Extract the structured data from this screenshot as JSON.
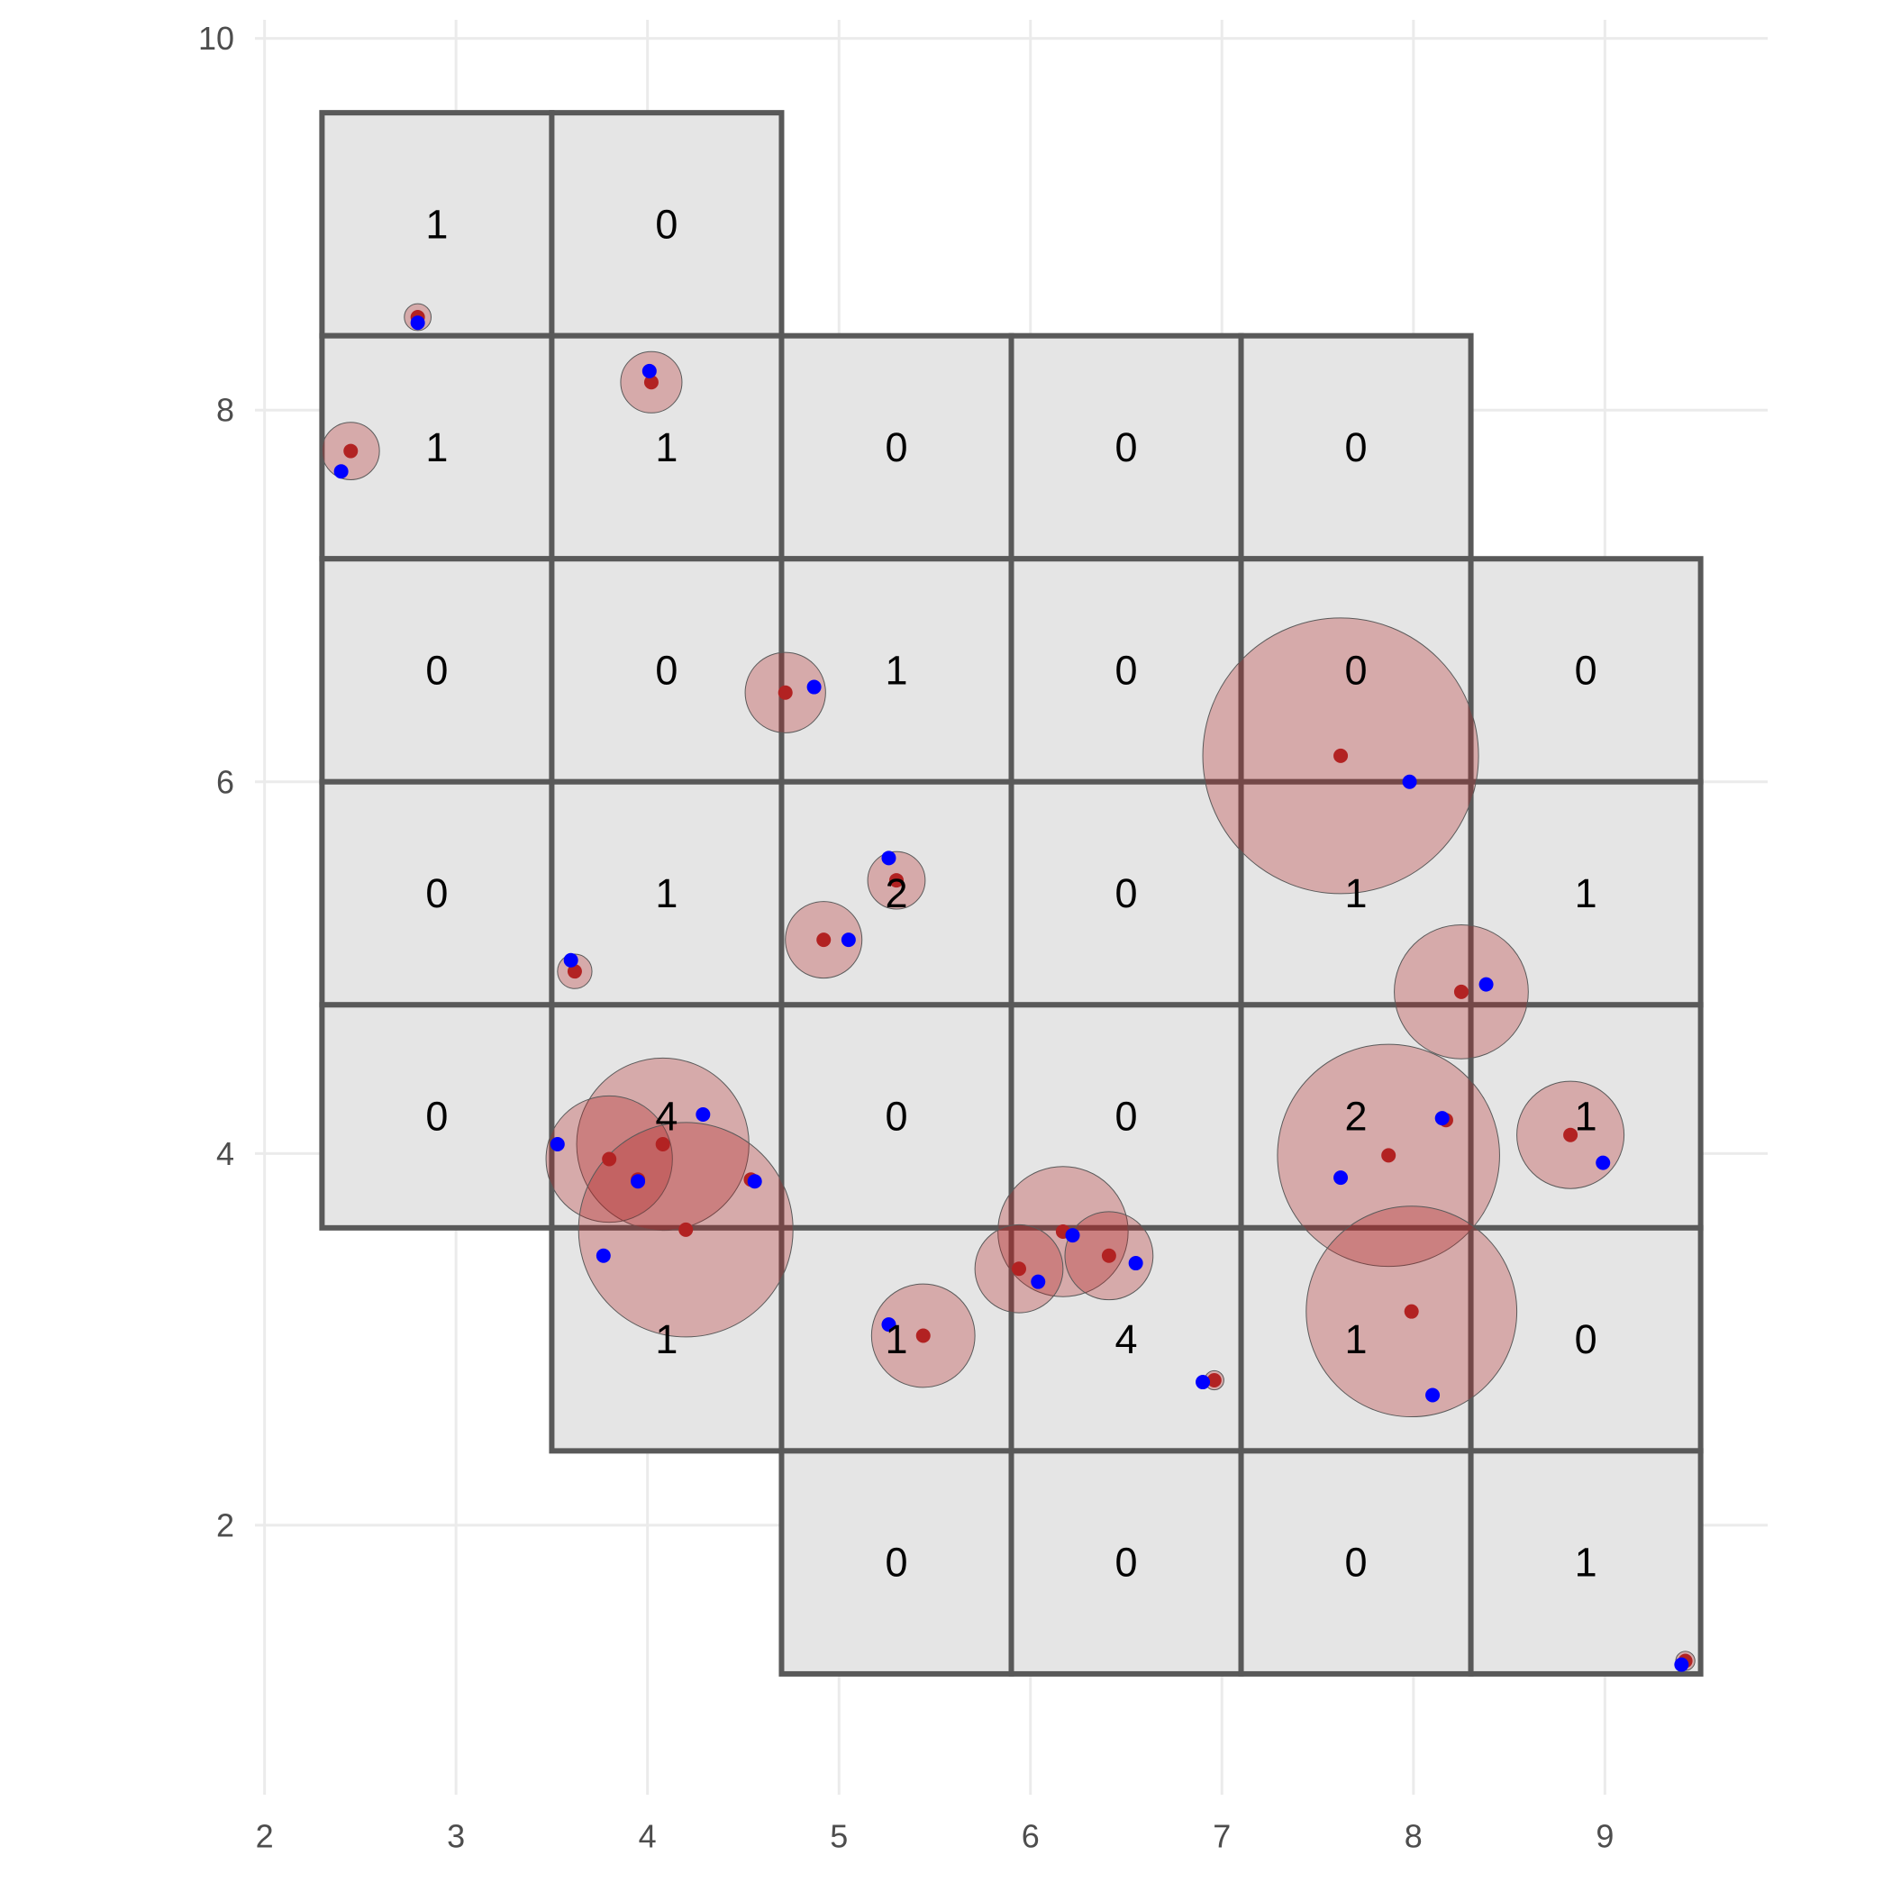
{
  "chart_data": {
    "type": "scatter",
    "title": "",
    "xlabel": "",
    "ylabel": "",
    "xlim": [
      1.95,
      9.85
    ],
    "ylim": [
      0.55,
      10.1
    ],
    "x_ticks": [
      2,
      3,
      4,
      5,
      6,
      7,
      8,
      9
    ],
    "y_ticks": [
      2,
      4,
      6,
      8,
      10
    ],
    "grid": true,
    "colors": {
      "cell_fill": "#e5e5e5",
      "cell_border": "#595959",
      "buffer_fill": "#b22222",
      "red_point": "#b22222",
      "blue_point": "#0000ff"
    },
    "cells": [
      {
        "x0": 2.3,
        "x1": 3.5,
        "y0": 8.4,
        "y1": 9.6,
        "count": "1"
      },
      {
        "x0": 3.5,
        "x1": 4.7,
        "y0": 8.4,
        "y1": 9.6,
        "count": "0"
      },
      {
        "x0": 2.3,
        "x1": 3.5,
        "y0": 7.2,
        "y1": 8.4,
        "count": "1"
      },
      {
        "x0": 3.5,
        "x1": 4.7,
        "y0": 7.2,
        "y1": 8.4,
        "count": "1"
      },
      {
        "x0": 4.7,
        "x1": 5.9,
        "y0": 7.2,
        "y1": 8.4,
        "count": "0"
      },
      {
        "x0": 5.9,
        "x1": 7.1,
        "y0": 7.2,
        "y1": 8.4,
        "count": "0"
      },
      {
        "x0": 7.1,
        "x1": 8.3,
        "y0": 7.2,
        "y1": 8.4,
        "count": "0"
      },
      {
        "x0": 2.3,
        "x1": 3.5,
        "y0": 6.0,
        "y1": 7.2,
        "count": "0"
      },
      {
        "x0": 3.5,
        "x1": 4.7,
        "y0": 6.0,
        "y1": 7.2,
        "count": "0"
      },
      {
        "x0": 4.7,
        "x1": 5.9,
        "y0": 6.0,
        "y1": 7.2,
        "count": "1"
      },
      {
        "x0": 5.9,
        "x1": 7.1,
        "y0": 6.0,
        "y1": 7.2,
        "count": "0"
      },
      {
        "x0": 7.1,
        "x1": 8.3,
        "y0": 6.0,
        "y1": 7.2,
        "count": "0"
      },
      {
        "x0": 8.3,
        "x1": 9.5,
        "y0": 6.0,
        "y1": 7.2,
        "count": "0"
      },
      {
        "x0": 2.3,
        "x1": 3.5,
        "y0": 4.8,
        "y1": 6.0,
        "count": "0"
      },
      {
        "x0": 3.5,
        "x1": 4.7,
        "y0": 4.8,
        "y1": 6.0,
        "count": "1"
      },
      {
        "x0": 4.7,
        "x1": 5.9,
        "y0": 4.8,
        "y1": 6.0,
        "count": "2"
      },
      {
        "x0": 5.9,
        "x1": 7.1,
        "y0": 4.8,
        "y1": 6.0,
        "count": "0"
      },
      {
        "x0": 7.1,
        "x1": 8.3,
        "y0": 4.8,
        "y1": 6.0,
        "count": "1"
      },
      {
        "x0": 8.3,
        "x1": 9.5,
        "y0": 4.8,
        "y1": 6.0,
        "count": "1"
      },
      {
        "x0": 2.3,
        "x1": 3.5,
        "y0": 3.6,
        "y1": 4.8,
        "count": "0"
      },
      {
        "x0": 3.5,
        "x1": 4.7,
        "y0": 3.6,
        "y1": 4.8,
        "count": "4"
      },
      {
        "x0": 4.7,
        "x1": 5.9,
        "y0": 3.6,
        "y1": 4.8,
        "count": "0"
      },
      {
        "x0": 5.9,
        "x1": 7.1,
        "y0": 3.6,
        "y1": 4.8,
        "count": "0"
      },
      {
        "x0": 7.1,
        "x1": 8.3,
        "y0": 3.6,
        "y1": 4.8,
        "count": "2"
      },
      {
        "x0": 8.3,
        "x1": 9.5,
        "y0": 3.6,
        "y1": 4.8,
        "count": "1"
      },
      {
        "x0": 3.5,
        "x1": 4.7,
        "y0": 2.4,
        "y1": 3.6,
        "count": "1"
      },
      {
        "x0": 4.7,
        "x1": 5.9,
        "y0": 2.4,
        "y1": 3.6,
        "count": "1"
      },
      {
        "x0": 5.9,
        "x1": 7.1,
        "y0": 2.4,
        "y1": 3.6,
        "count": "4"
      },
      {
        "x0": 7.1,
        "x1": 8.3,
        "y0": 2.4,
        "y1": 3.6,
        "count": "1"
      },
      {
        "x0": 8.3,
        "x1": 9.5,
        "y0": 2.4,
        "y1": 3.6,
        "count": "0"
      },
      {
        "x0": 4.7,
        "x1": 5.9,
        "y0": 1.2,
        "y1": 2.4,
        "count": "0"
      },
      {
        "x0": 5.9,
        "x1": 7.1,
        "y0": 1.2,
        "y1": 2.4,
        "count": "0"
      },
      {
        "x0": 7.1,
        "x1": 8.3,
        "y0": 1.2,
        "y1": 2.4,
        "count": "0"
      },
      {
        "x0": 8.3,
        "x1": 9.5,
        "y0": 1.2,
        "y1": 2.4,
        "count": "1"
      }
    ],
    "buffers": [
      {
        "x": 2.8,
        "y": 8.5,
        "r": 0.07
      },
      {
        "x": 2.45,
        "y": 7.78,
        "r": 0.15
      },
      {
        "x": 4.02,
        "y": 8.15,
        "r": 0.16
      },
      {
        "x": 4.72,
        "y": 6.48,
        "r": 0.21
      },
      {
        "x": 7.62,
        "y": 6.14,
        "r": 0.72
      },
      {
        "x": 5.3,
        "y": 5.47,
        "r": 0.15
      },
      {
        "x": 4.92,
        "y": 5.15,
        "r": 0.2
      },
      {
        "x": 3.62,
        "y": 4.98,
        "r": 0.09
      },
      {
        "x": 8.25,
        "y": 4.87,
        "r": 0.35
      },
      {
        "x": 4.08,
        "y": 4.05,
        "r": 0.45
      },
      {
        "x": 3.8,
        "y": 3.97,
        "r": 0.33
      },
      {
        "x": 4.2,
        "y": 3.59,
        "r": 0.56
      },
      {
        "x": 7.87,
        "y": 3.99,
        "r": 0.58
      },
      {
        "x": 8.82,
        "y": 4.1,
        "r": 0.28
      },
      {
        "x": 6.17,
        "y": 3.58,
        "r": 0.34
      },
      {
        "x": 6.41,
        "y": 3.45,
        "r": 0.23
      },
      {
        "x": 5.94,
        "y": 3.38,
        "r": 0.23
      },
      {
        "x": 7.99,
        "y": 3.15,
        "r": 0.55
      },
      {
        "x": 5.44,
        "y": 3.02,
        "r": 0.27
      },
      {
        "x": 6.96,
        "y": 2.78,
        "r": 0.05
      },
      {
        "x": 9.42,
        "y": 1.27,
        "r": 0.05
      }
    ],
    "red_points": [
      {
        "x": 2.8,
        "y": 8.5
      },
      {
        "x": 2.45,
        "y": 7.78
      },
      {
        "x": 4.02,
        "y": 8.15
      },
      {
        "x": 4.72,
        "y": 6.48
      },
      {
        "x": 7.62,
        "y": 6.14
      },
      {
        "x": 5.3,
        "y": 5.47
      },
      {
        "x": 4.92,
        "y": 5.15
      },
      {
        "x": 3.62,
        "y": 4.98
      },
      {
        "x": 8.25,
        "y": 4.87
      },
      {
        "x": 4.08,
        "y": 4.05
      },
      {
        "x": 3.8,
        "y": 3.97
      },
      {
        "x": 3.95,
        "y": 3.86
      },
      {
        "x": 4.54,
        "y": 3.86
      },
      {
        "x": 4.2,
        "y": 3.59
      },
      {
        "x": 7.87,
        "y": 3.99
      },
      {
        "x": 8.17,
        "y": 4.18
      },
      {
        "x": 8.82,
        "y": 4.1
      },
      {
        "x": 6.17,
        "y": 3.58
      },
      {
        "x": 6.41,
        "y": 3.45
      },
      {
        "x": 5.94,
        "y": 3.38
      },
      {
        "x": 7.99,
        "y": 3.15
      },
      {
        "x": 5.44,
        "y": 3.02
      },
      {
        "x": 6.96,
        "y": 2.78
      },
      {
        "x": 9.42,
        "y": 1.27
      }
    ],
    "blue_points": [
      {
        "x": 2.8,
        "y": 8.47
      },
      {
        "x": 2.4,
        "y": 7.67
      },
      {
        "x": 4.01,
        "y": 8.21
      },
      {
        "x": 4.87,
        "y": 6.51
      },
      {
        "x": 7.98,
        "y": 6.0
      },
      {
        "x": 5.26,
        "y": 5.59
      },
      {
        "x": 5.05,
        "y": 5.15
      },
      {
        "x": 3.6,
        "y": 5.04
      },
      {
        "x": 8.38,
        "y": 4.91
      },
      {
        "x": 3.53,
        "y": 4.05
      },
      {
        "x": 4.29,
        "y": 4.21
      },
      {
        "x": 3.95,
        "y": 3.85
      },
      {
        "x": 4.56,
        "y": 3.85
      },
      {
        "x": 3.77,
        "y": 3.45
      },
      {
        "x": 7.62,
        "y": 3.87
      },
      {
        "x": 8.15,
        "y": 4.19
      },
      {
        "x": 8.99,
        "y": 3.95
      },
      {
        "x": 6.22,
        "y": 3.56
      },
      {
        "x": 6.55,
        "y": 3.41
      },
      {
        "x": 6.04,
        "y": 3.31
      },
      {
        "x": 8.1,
        "y": 2.7
      },
      {
        "x": 5.26,
        "y": 3.08
      },
      {
        "x": 6.9,
        "y": 2.77
      },
      {
        "x": 9.4,
        "y": 1.25
      }
    ]
  }
}
